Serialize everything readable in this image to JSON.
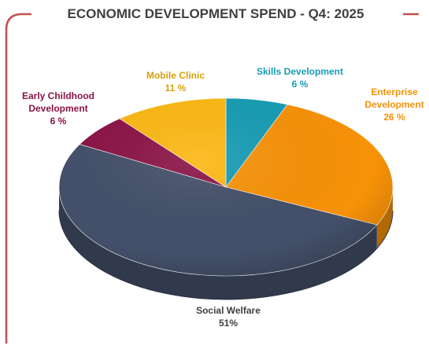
{
  "colors": {
    "frame": "#c0504d",
    "title": "#404040",
    "social_welfare": "#44506a",
    "enterprise_development": "#f79208",
    "skills_development": "#179cb4",
    "mobile_clinic": "#fcb814",
    "early_childhood_development": "#8b1447"
  },
  "chart_data": {
    "type": "pie",
    "title": "ECONOMIC DEVELOPMENT SPEND - Q4: 2025",
    "slices": [
      {
        "label": "Skills Development",
        "value": 6,
        "value_label": "6 %",
        "color": "#179cb4"
      },
      {
        "label": "Enterprise Development",
        "value": 26,
        "value_label": "26 %",
        "color": "#f79208"
      },
      {
        "label": "Social Welfare",
        "value": 51,
        "value_label": "51%",
        "color": "#44506a"
      },
      {
        "label": "Early Childhood Development",
        "value": 6,
        "value_label": "6 %",
        "color": "#8b1447"
      },
      {
        "label": "Mobile Clinic",
        "value": 11,
        "value_label": "11 %",
        "color": "#fcb814"
      }
    ]
  },
  "labels": {
    "skills": {
      "line1": "Skills Development",
      "value": "6 %"
    },
    "enterprise": {
      "line1": "Enterprise",
      "line2": "Development",
      "value": "26 %"
    },
    "social": {
      "line1": "Social Welfare",
      "value": "51%"
    },
    "early": {
      "line1": "Early Childhood",
      "line2": "Development",
      "value": "6 %"
    },
    "mobile": {
      "line1": "Mobile Clinic",
      "value": "11 %"
    }
  }
}
